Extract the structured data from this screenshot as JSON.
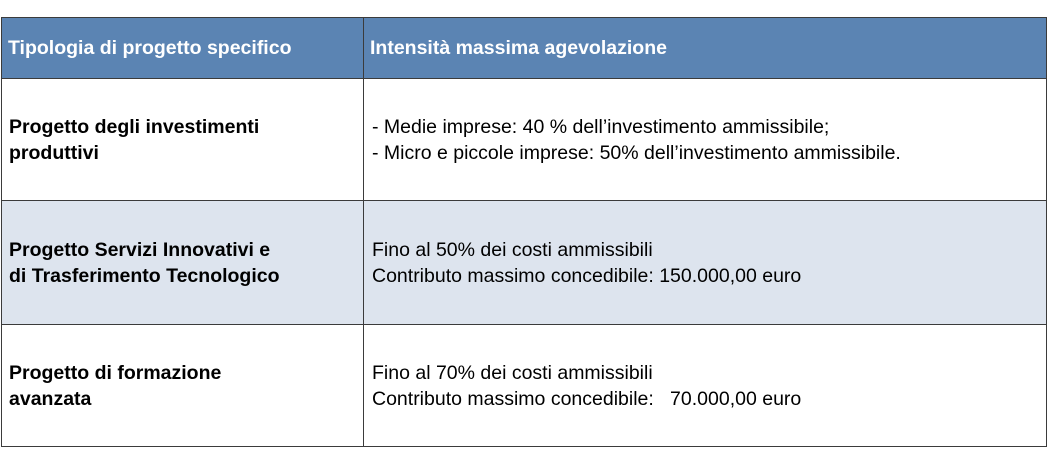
{
  "table": {
    "headers": [
      "Tipologia di progetto specifico",
      "Intensità massima agevolazione"
    ],
    "rows": [
      {
        "label_lines": [
          "Progetto degli investimenti",
          "produttivi"
        ],
        "desc_lines": [
          "- Medie imprese: 40 % dell’investimento ammissibile;",
          "- Micro e piccole imprese: 50% dell’investimento ammissibile."
        ]
      },
      {
        "label_lines": [
          "Progetto Servizi Innovativi e",
          "di Trasferimento Tecnologico"
        ],
        "desc_lines": [
          "Fino al 50% dei costi ammissibili",
          "Contributo massimo concedibile: 150.000,00 euro"
        ]
      },
      {
        "label_lines": [
          "Progetto di formazione",
          "avanzata"
        ],
        "desc_lines": [
          "Fino al 70% dei costi ammissibili",
          "Contributo massimo concedibile:   70.000,00 euro"
        ]
      }
    ]
  },
  "colors": {
    "header_bg": "#5b84b3",
    "header_text": "#ffffff",
    "alt_row_bg": "#dde4ee",
    "border": "#3b3b3b"
  }
}
